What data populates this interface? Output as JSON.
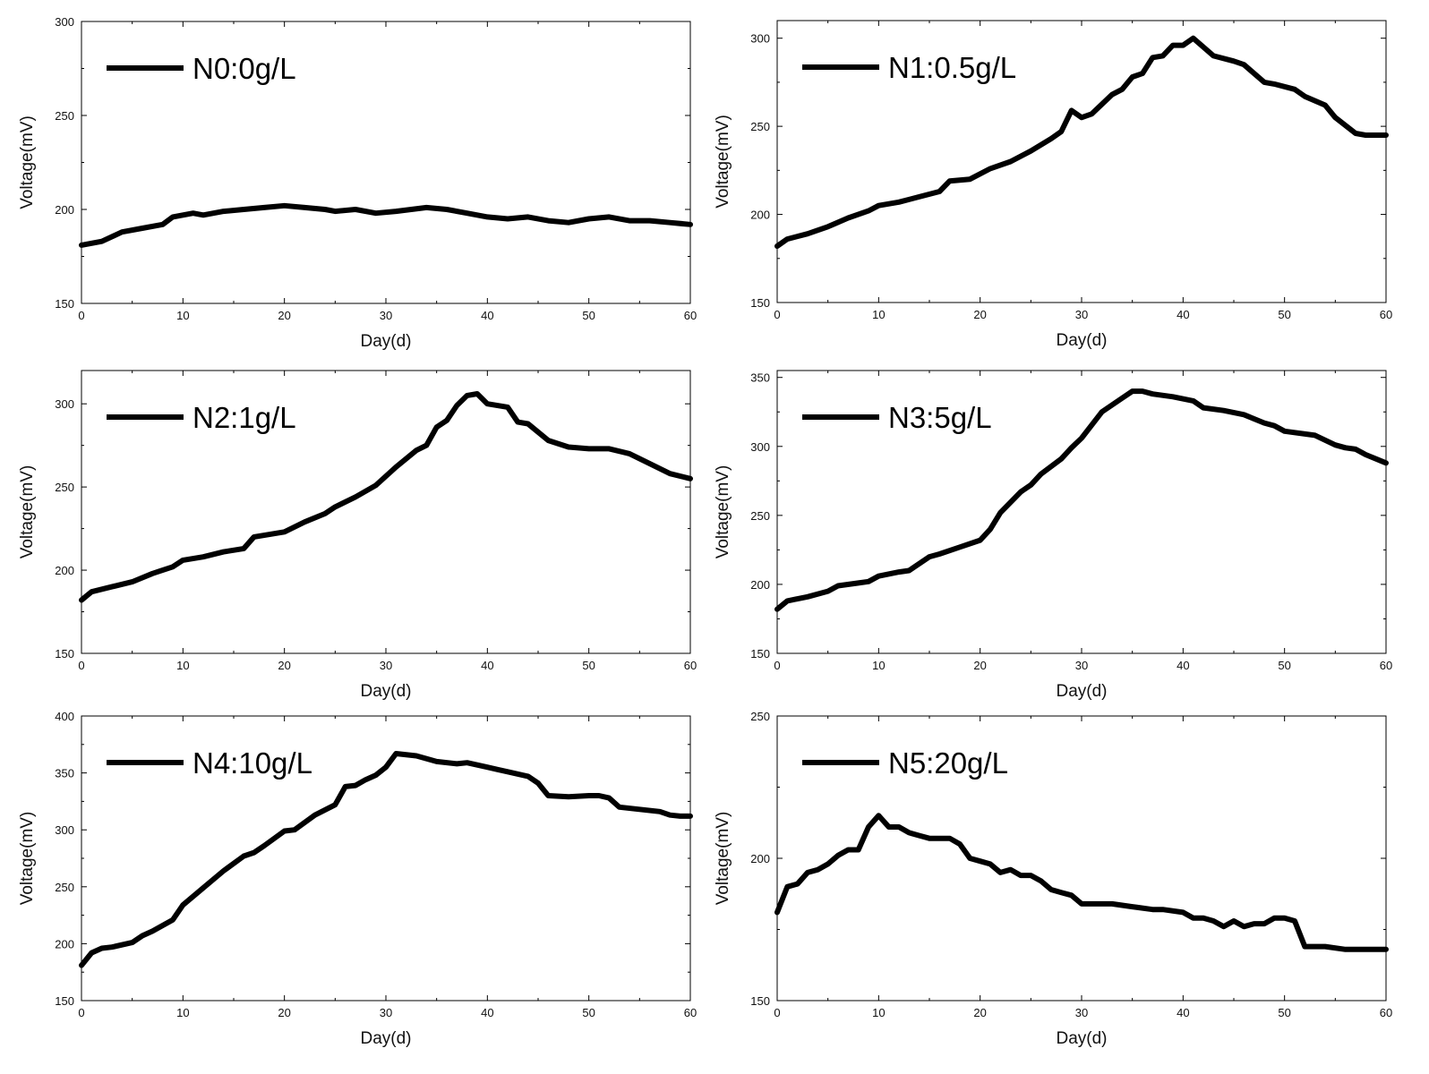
{
  "chart_data": [
    {
      "type": "line",
      "xlabel": "Day(d)",
      "ylabel": "Voltage(mV)",
      "xlim": [
        0,
        60
      ],
      "ylim": [
        150,
        300
      ],
      "xticks": [
        0,
        10,
        20,
        30,
        40,
        50,
        60
      ],
      "yticks": [
        150,
        200,
        250,
        300
      ],
      "legend": "top-left",
      "grid": false,
      "series": [
        {
          "name": "N0:0g/L",
          "color": "#000000",
          "x": [
            0,
            2,
            4,
            6,
            8,
            9,
            10,
            11,
            12,
            14,
            16,
            18,
            20,
            22,
            24,
            25,
            27,
            29,
            31,
            34,
            36,
            38,
            40,
            42,
            44,
            46,
            48,
            50,
            52,
            54,
            56,
            58,
            60
          ],
          "y": [
            181,
            183,
            188,
            190,
            192,
            196,
            197,
            198,
            197,
            199,
            200,
            201,
            202,
            201,
            200,
            199,
            200,
            198,
            199,
            201,
            200,
            198,
            196,
            195,
            196,
            194,
            193,
            195,
            196,
            194,
            194,
            193,
            192
          ]
        }
      ]
    },
    {
      "type": "line",
      "xlabel": "Day(d)",
      "ylabel": "Voltage(mV)",
      "xlim": [
        0,
        60
      ],
      "ylim": [
        150,
        310
      ],
      "xticks": [
        0,
        10,
        20,
        30,
        40,
        50,
        60
      ],
      "yticks": [
        150,
        200,
        250,
        300
      ],
      "legend": "top-left",
      "grid": false,
      "series": [
        {
          "name": "N1:0.5g/L",
          "color": "#000000",
          "x": [
            0,
            1,
            3,
            5,
            7,
            9,
            10,
            12,
            14,
            16,
            17,
            19,
            21,
            23,
            25,
            27,
            28,
            29,
            30,
            31,
            33,
            34,
            35,
            36,
            37,
            38,
            39,
            40,
            41,
            43,
            45,
            46,
            48,
            49,
            51,
            52,
            54,
            55,
            57,
            58,
            60
          ],
          "y": [
            182,
            186,
            189,
            193,
            198,
            202,
            205,
            207,
            210,
            213,
            219,
            220,
            226,
            230,
            236,
            243,
            247,
            259,
            255,
            257,
            268,
            271,
            278,
            280,
            289,
            290,
            296,
            296,
            300,
            290,
            287,
            285,
            275,
            274,
            271,
            267,
            262,
            255,
            246,
            245,
            245
          ]
        }
      ]
    },
    {
      "type": "line",
      "xlabel": "Day(d)",
      "ylabel": "Voltage(mV)",
      "xlim": [
        0,
        60
      ],
      "ylim": [
        150,
        320
      ],
      "xticks": [
        0,
        10,
        20,
        30,
        40,
        50,
        60
      ],
      "yticks": [
        150,
        200,
        250,
        300
      ],
      "legend": "top-left",
      "grid": false,
      "series": [
        {
          "name": "N2:1g/L",
          "color": "#000000",
          "x": [
            0,
            1,
            3,
            5,
            7,
            9,
            10,
            12,
            14,
            16,
            17,
            20,
            22,
            24,
            25,
            27,
            29,
            31,
            33,
            34,
            35,
            36,
            37,
            38,
            39,
            40,
            42,
            43,
            44,
            46,
            48,
            50,
            52,
            54,
            56,
            58,
            60
          ],
          "y": [
            182,
            187,
            190,
            193,
            198,
            202,
            206,
            208,
            211,
            213,
            220,
            223,
            229,
            234,
            238,
            244,
            251,
            262,
            272,
            275,
            286,
            290,
            299,
            305,
            306,
            300,
            298,
            289,
            288,
            278,
            274,
            273,
            273,
            270,
            264,
            258,
            255
          ]
        }
      ]
    },
    {
      "type": "line",
      "xlabel": "Day(d)",
      "ylabel": "Voltage(mV)",
      "xlim": [
        0,
        60
      ],
      "ylim": [
        150,
        355
      ],
      "xticks": [
        0,
        10,
        20,
        30,
        40,
        50,
        60
      ],
      "yticks": [
        150,
        200,
        250,
        300,
        350
      ],
      "legend": "top-left",
      "grid": false,
      "series": [
        {
          "name": "N3:5g/L",
          "color": "#000000",
          "x": [
            0,
            1,
            3,
            5,
            6,
            8,
            9,
            10,
            12,
            13,
            15,
            16,
            18,
            20,
            21,
            22,
            24,
            25,
            26,
            28,
            29,
            30,
            32,
            34,
            35,
            36,
            37,
            39,
            41,
            42,
            44,
            46,
            48,
            49,
            50,
            53,
            55,
            56,
            57,
            58,
            60
          ],
          "y": [
            182,
            188,
            191,
            195,
            199,
            201,
            202,
            206,
            209,
            210,
            220,
            222,
            227,
            232,
            240,
            252,
            267,
            272,
            280,
            291,
            299,
            306,
            325,
            335,
            340,
            340,
            338,
            336,
            333,
            328,
            326,
            323,
            317,
            315,
            311,
            308,
            301,
            299,
            298,
            294,
            288
          ]
        }
      ]
    },
    {
      "type": "line",
      "xlabel": "Day(d)",
      "ylabel": "Voltage(mV)",
      "xlim": [
        0,
        60
      ],
      "ylim": [
        150,
        400
      ],
      "xticks": [
        0,
        10,
        20,
        30,
        40,
        50,
        60
      ],
      "yticks": [
        150,
        200,
        250,
        300,
        350,
        400
      ],
      "legend": "top-left",
      "grid": false,
      "series": [
        {
          "name": "N4:10g/L",
          "color": "#000000",
          "x": [
            0,
            1,
            2,
            3,
            5,
            6,
            7,
            9,
            10,
            12,
            14,
            16,
            17,
            18,
            20,
            21,
            23,
            25,
            26,
            27,
            28,
            29,
            30,
            31,
            33,
            35,
            37,
            38,
            40,
            41,
            42,
            44,
            45,
            46,
            48,
            50,
            51,
            52,
            53,
            55,
            57,
            58,
            59,
            60
          ],
          "y": [
            181,
            192,
            196,
            197,
            201,
            207,
            211,
            221,
            234,
            249,
            264,
            277,
            280,
            286,
            299,
            300,
            313,
            322,
            338,
            339,
            344,
            348,
            355,
            367,
            365,
            360,
            358,
            359,
            355,
            353,
            351,
            347,
            341,
            330,
            329,
            330,
            330,
            328,
            320,
            318,
            316,
            313,
            312,
            312
          ]
        }
      ]
    },
    {
      "type": "line",
      "xlabel": "Day(d)",
      "ylabel": "Voltage(mV)",
      "xlim": [
        0,
        60
      ],
      "ylim": [
        150,
        250
      ],
      "xticks": [
        0,
        10,
        20,
        30,
        40,
        50,
        60
      ],
      "yticks": [
        150,
        200,
        250
      ],
      "legend": "top-left",
      "grid": false,
      "series": [
        {
          "name": "N5:20g/L",
          "color": "#000000",
          "x": [
            0,
            1,
            2,
            3,
            4,
            5,
            6,
            7,
            8,
            9,
            10,
            11,
            12,
            13,
            14,
            15,
            16,
            17,
            18,
            19,
            20,
            21,
            22,
            23,
            24,
            25,
            26,
            27,
            28,
            29,
            30,
            33,
            35,
            37,
            38,
            40,
            41,
            42,
            43,
            44,
            45,
            46,
            47,
            48,
            49,
            50,
            51,
            52,
            54,
            56,
            58,
            60
          ],
          "y": [
            181,
            190,
            191,
            195,
            196,
            198,
            201,
            203,
            203,
            211,
            215,
            211,
            211,
            209,
            208,
            207,
            207,
            207,
            205,
            200,
            199,
            198,
            195,
            196,
            194,
            194,
            192,
            189,
            188,
            187,
            184,
            184,
            183,
            182,
            182,
            181,
            179,
            179,
            178,
            176,
            178,
            176,
            177,
            177,
            179,
            179,
            178,
            169,
            169,
            168,
            168,
            168
          ]
        }
      ]
    }
  ]
}
